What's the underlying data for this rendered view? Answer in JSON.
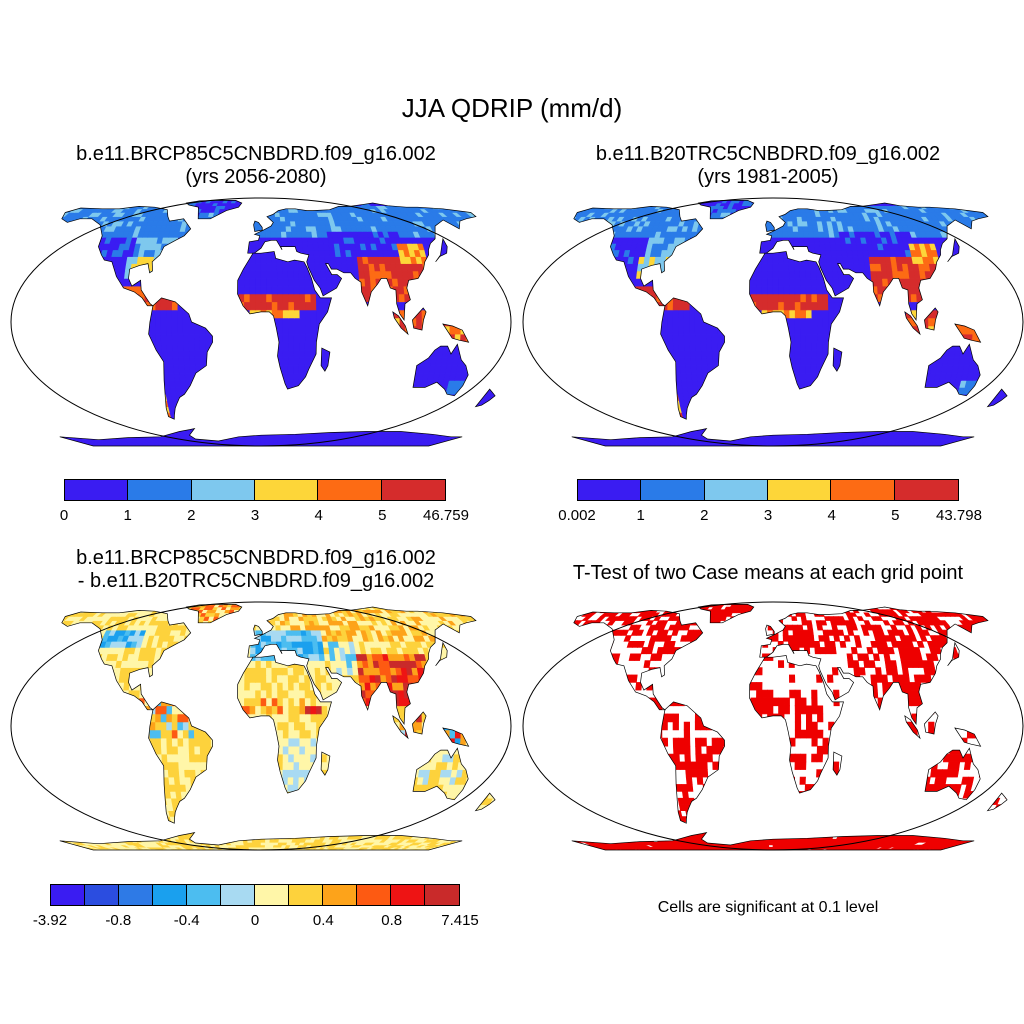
{
  "title": "JJA QDRIP (mm/d)",
  "panels": {
    "top_left": {
      "title_line1": "b.e11.BRCP85C5CNBDRD.f09_g16.002",
      "title_line2": "(yrs 2056-2080)",
      "colorbar": {
        "colors": [
          "#3a1cf2",
          "#2a7be8",
          "#7ec8ee",
          "#fdd639",
          "#fd6b14",
          "#d52c2c"
        ],
        "labels": [
          "0",
          "1",
          "2",
          "3",
          "4",
          "5",
          "46.759"
        ]
      }
    },
    "top_right": {
      "title_line1": "b.e11.B20TRC5CNBDRD.f09_g16.002",
      "title_line2": "(yrs 1981-2005)",
      "colorbar": {
        "colors": [
          "#3a1cf2",
          "#2a7be8",
          "#7ec8ee",
          "#fdd639",
          "#fd6b14",
          "#d52c2c"
        ],
        "labels": [
          "0.002",
          "1",
          "2",
          "3",
          "4",
          "5",
          "43.798"
        ]
      }
    },
    "bottom_left": {
      "title_line1": "b.e11.BRCP85C5CNBDRD.f09_g16.002",
      "title_line2": "- b.e11.B20TRC5CNBDRD.f09_g16.002",
      "colorbar": {
        "colors": [
          "#3a1cf2",
          "#2b4de0",
          "#2e7ae6",
          "#1aa0ee",
          "#4cbdf0",
          "#a8daf2",
          "#fff6a8",
          "#fdd23c",
          "#fda31a",
          "#fd5a12",
          "#ee1414",
          "#c92a2a"
        ],
        "labels": [
          "-3.92",
          "-0.8",
          "-0.4",
          "0",
          "0.4",
          "0.8",
          "7.415"
        ]
      }
    },
    "bottom_right": {
      "title": "T-Test of two Case means at each grid point",
      "note": "Cells are significant at 0.1 level",
      "sig_color": "#ee0000"
    }
  }
}
